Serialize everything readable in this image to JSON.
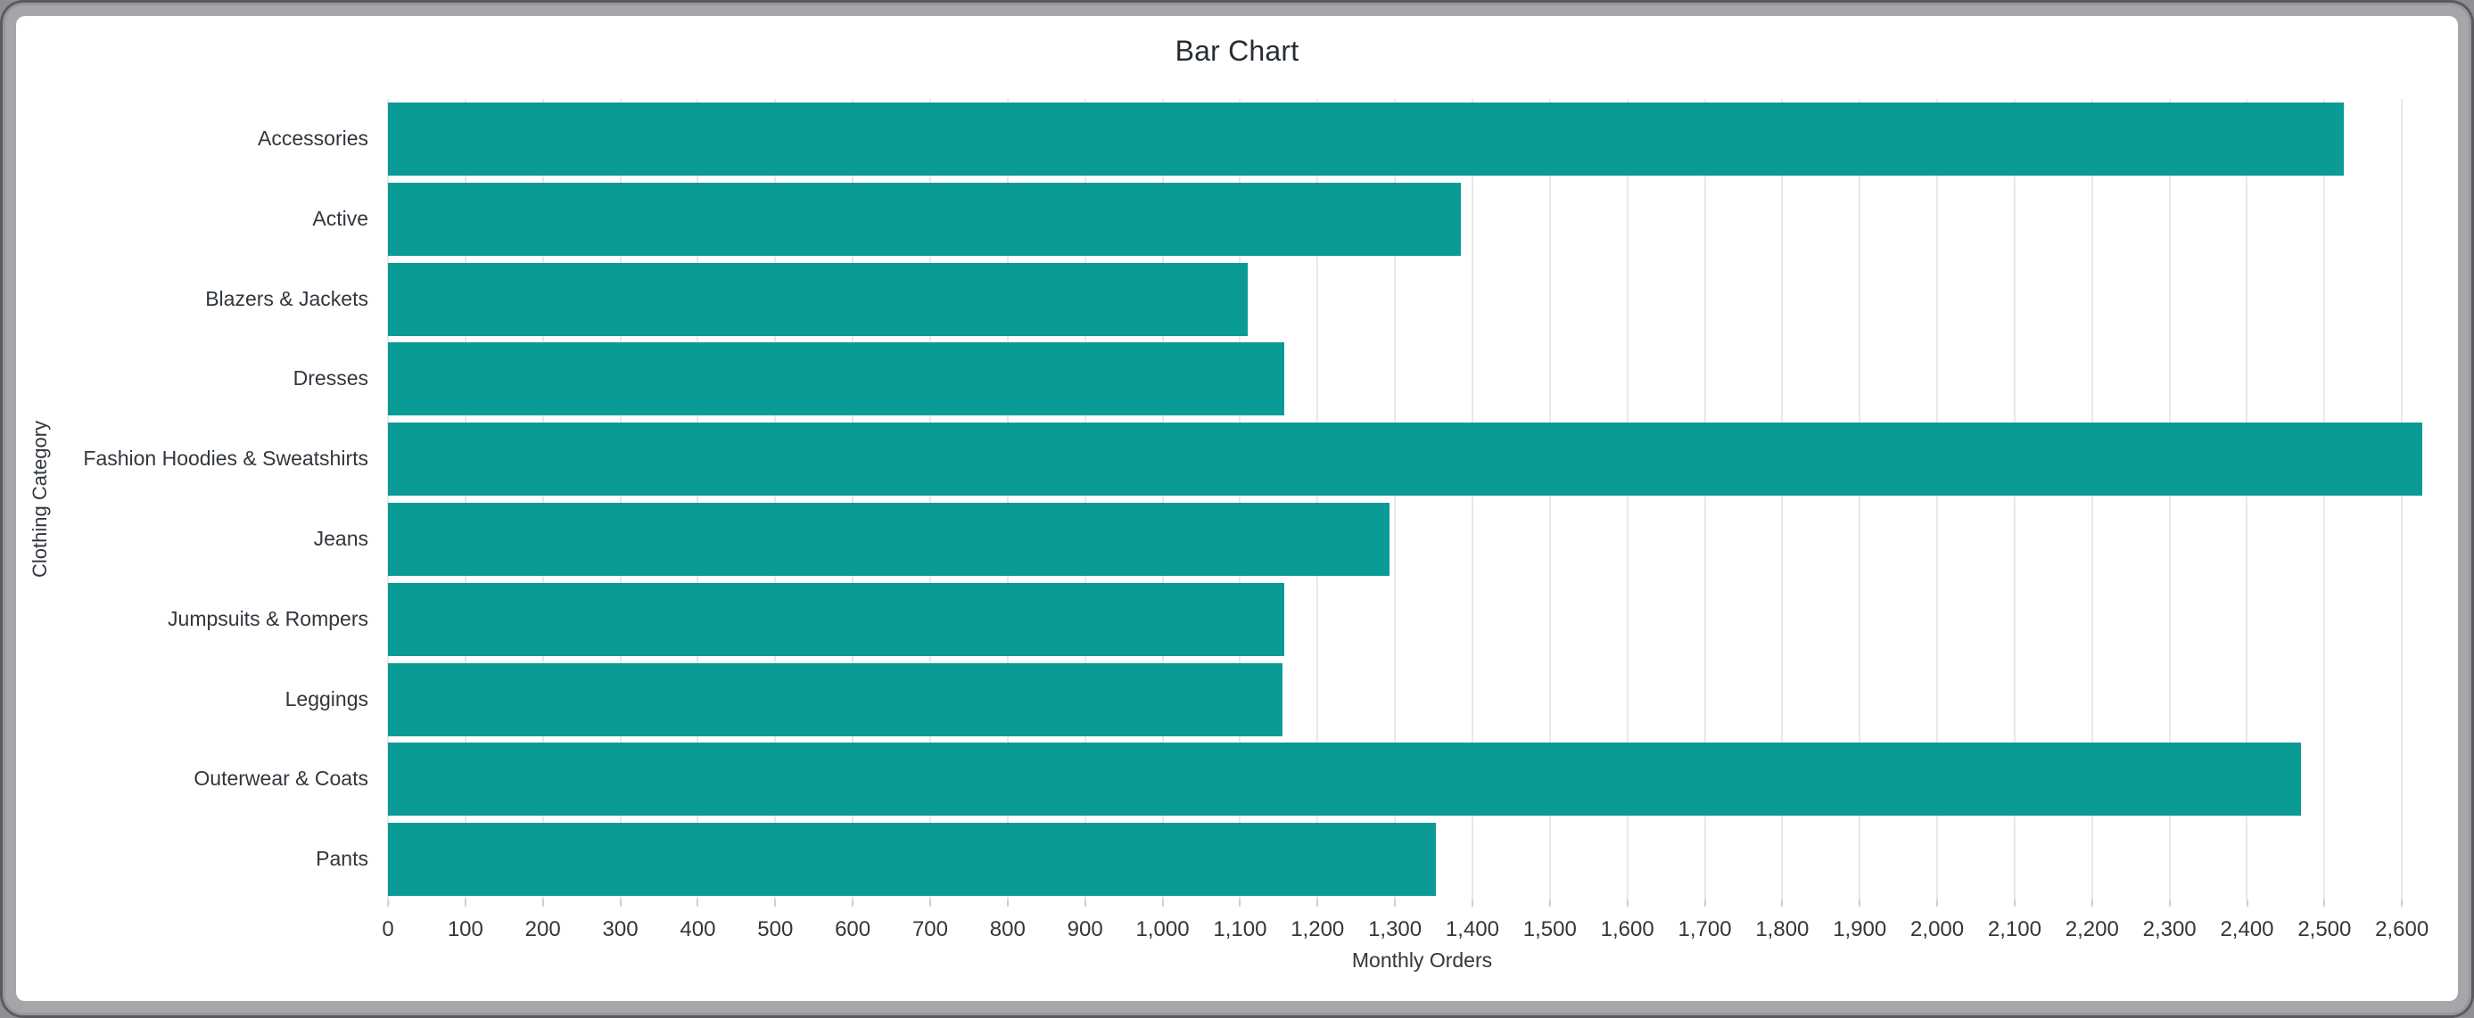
{
  "window": {
    "frame_color": "#a6a6aa",
    "card_color": "#ffffff"
  },
  "chart_data": {
    "type": "bar",
    "orientation": "horizontal",
    "title": "Bar Chart",
    "xlabel": "Monthly Orders",
    "ylabel": "Clothing Category",
    "categories": [
      "Accessories",
      "Active",
      "Blazers & Jackets",
      "Dresses",
      "Fashion Hoodies & Sweatshirts",
      "Jeans",
      "Jumpsuits & Rompers",
      "Leggings",
      "Outerwear & Coats",
      "Pants"
    ],
    "values": [
      2525,
      1385,
      1110,
      1157,
      2626,
      1293,
      1157,
      1155,
      2470,
      1353
    ],
    "xlim": [
      0,
      2670
    ],
    "x_tick_step": 100,
    "x_ticks": [
      0,
      100,
      200,
      300,
      400,
      500,
      600,
      700,
      800,
      900,
      1000,
      1100,
      1200,
      1300,
      1400,
      1500,
      1600,
      1700,
      1800,
      1900,
      2000,
      2100,
      2200,
      2300,
      2400,
      2500,
      2600
    ],
    "x_tick_labels": [
      "0",
      "100",
      "200",
      "300",
      "400",
      "500",
      "600",
      "700",
      "800",
      "900",
      "1,000",
      "1,100",
      "1,200",
      "1,300",
      "1,400",
      "1,500",
      "1,600",
      "1,700",
      "1,800",
      "1,900",
      "2,000",
      "2,100",
      "2,200",
      "2,300",
      "2,400",
      "2,500",
      "2,600"
    ],
    "grid": true,
    "legend": "none",
    "bar_color": "#0a9b96",
    "gridline_color": "#e8e8e8",
    "tick_color": "#cfcfcf",
    "text_color": "#31373d",
    "title_color": "#262d35"
  }
}
